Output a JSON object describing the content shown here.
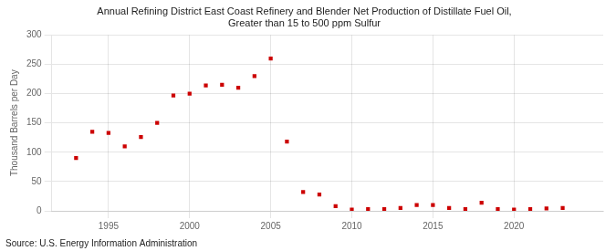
{
  "chart_data": {
    "type": "scatter",
    "title": "Annual Refining District East Coast Refinery and Blender Net Production of Distillate Fuel Oil,\nGreater than 15 to 500 ppm Sulfur",
    "ylabel": "Thousand Barrels per Day",
    "annotations": [
      "Source: U.S. Energy Information Administration"
    ],
    "x": [
      1993,
      1994,
      1995,
      1996,
      1997,
      1998,
      1999,
      2000,
      2001,
      2002,
      2003,
      2004,
      2005,
      2006,
      2007,
      2008,
      2009,
      2010,
      2011,
      2012,
      2013,
      2014,
      2015,
      2016,
      2017,
      2018,
      2019,
      2020,
      2021,
      2022,
      2023
    ],
    "values": [
      90,
      135,
      133,
      110,
      126,
      150,
      197,
      200,
      214,
      215,
      210,
      230,
      260,
      118,
      32,
      28,
      8,
      2,
      3,
      3,
      5,
      10,
      10,
      5,
      3,
      14,
      3,
      2,
      3,
      4,
      5
    ],
    "color": "#cc0000",
    "marker": "square",
    "xlim": [
      1991.5,
      2025.5
    ],
    "xticks": [
      1995,
      2000,
      2005,
      2010,
      2015,
      2020
    ],
    "ylim": [
      0,
      300
    ],
    "yticks": [
      0,
      50,
      100,
      150,
      200,
      250,
      300
    ],
    "grid": true
  }
}
